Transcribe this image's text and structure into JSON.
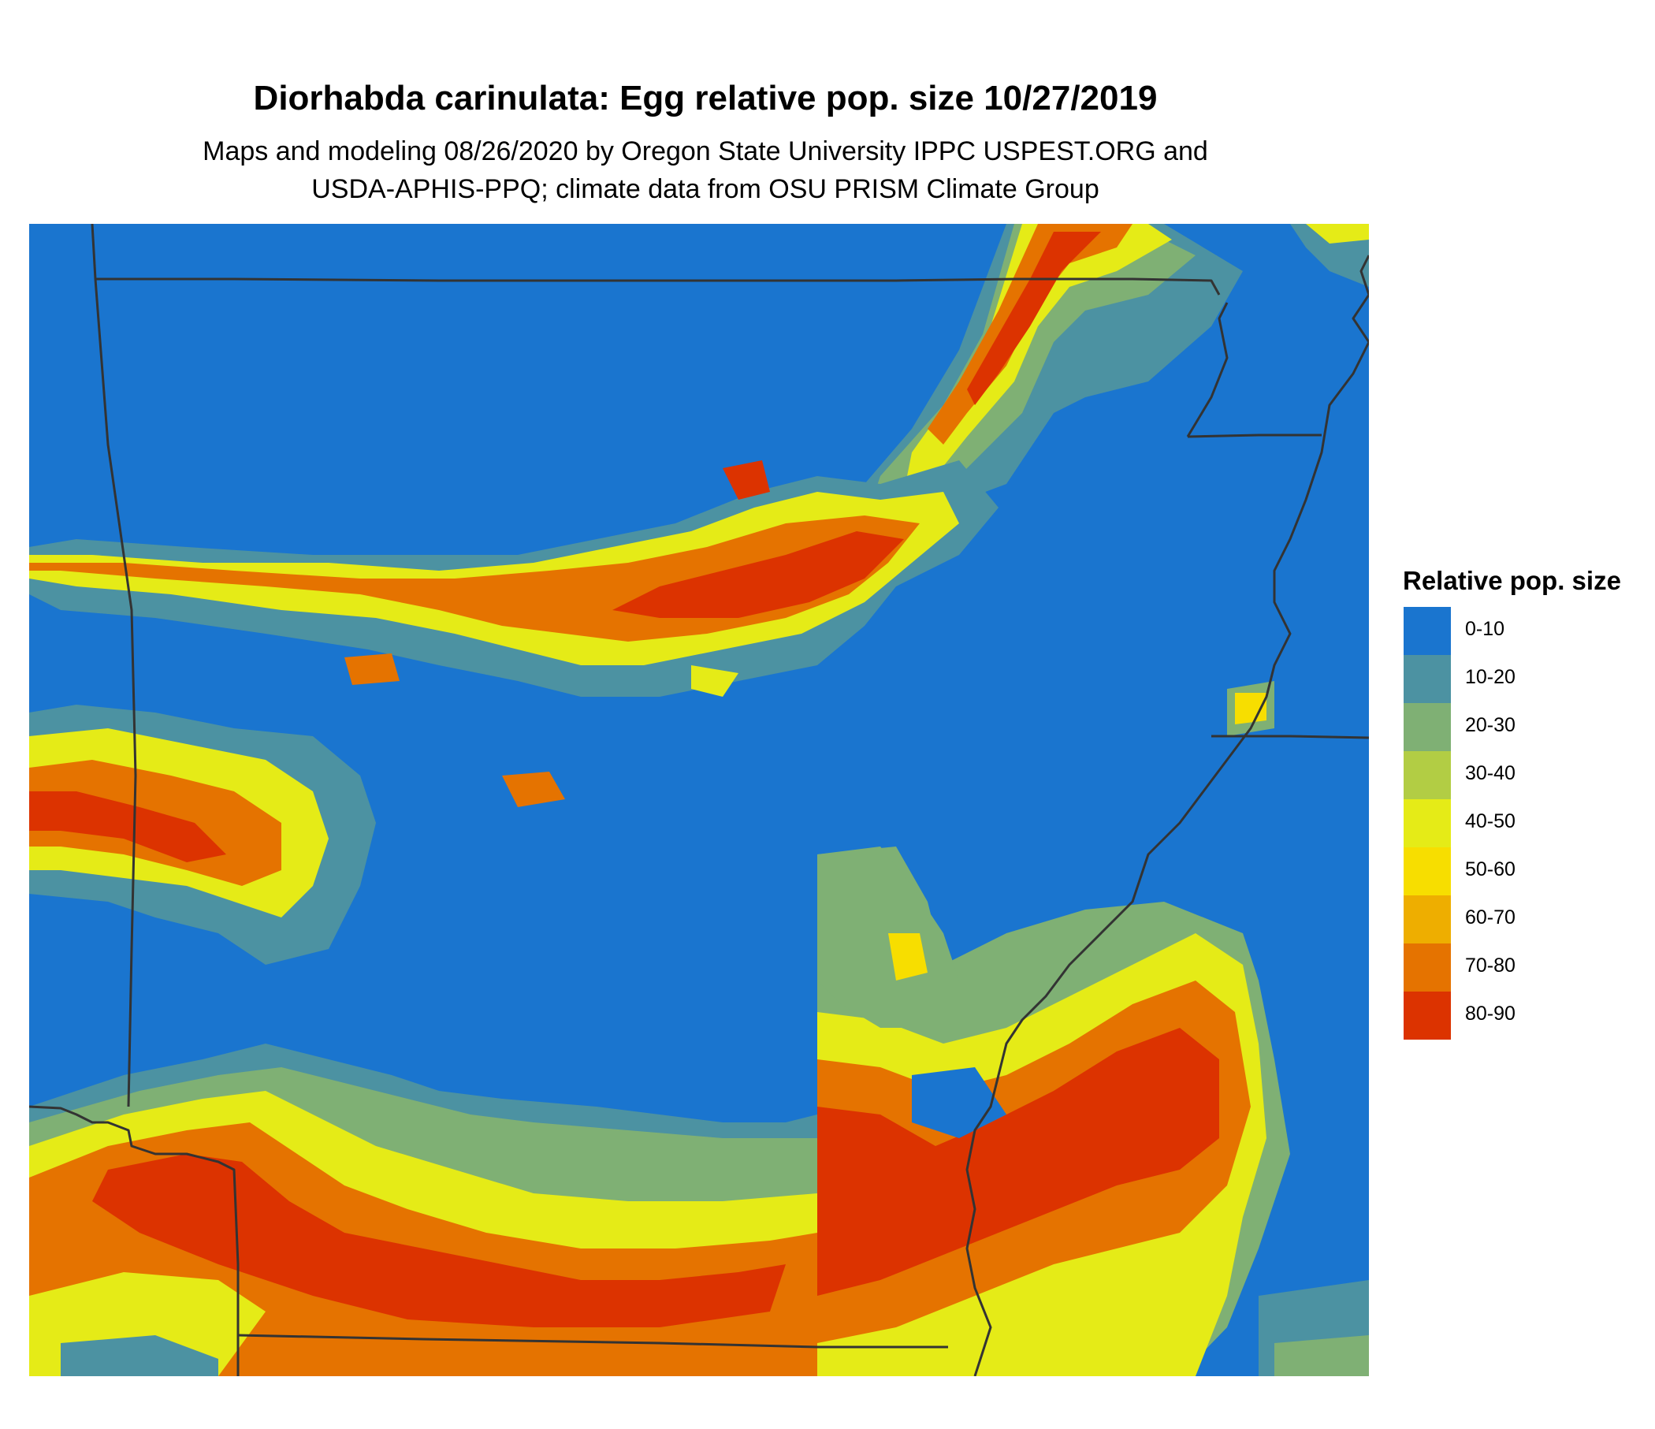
{
  "title": "Diorhabda carinulata: Egg relative pop. size 10/27/2019",
  "subtitle_lines": [
    "Maps and modeling 08/26/2020 by Oregon State University IPPC USPEST.ORG and",
    "USDA-APHIS-PPQ; climate data from OSU PRISM Climate Group"
  ],
  "legend": {
    "title": "Relative pop. size",
    "classes": [
      {
        "label": "0-10",
        "color": "#1a75cf"
      },
      {
        "label": "10-20",
        "color": "#4c92a2"
      },
      {
        "label": "20-30",
        "color": "#7fb074"
      },
      {
        "label": "30-40",
        "color": "#b2cd44"
      },
      {
        "label": "40-50",
        "color": "#e5eb17"
      },
      {
        "label": "50-60",
        "color": "#f7de00"
      },
      {
        "label": "60-70",
        "color": "#eeae00"
      },
      {
        "label": "70-80",
        "color": "#e57300"
      },
      {
        "label": "80-90",
        "color": "#dc3300"
      }
    ]
  },
  "colors": {
    "background": "#ffffff",
    "boundary_line": "#333333"
  }
}
